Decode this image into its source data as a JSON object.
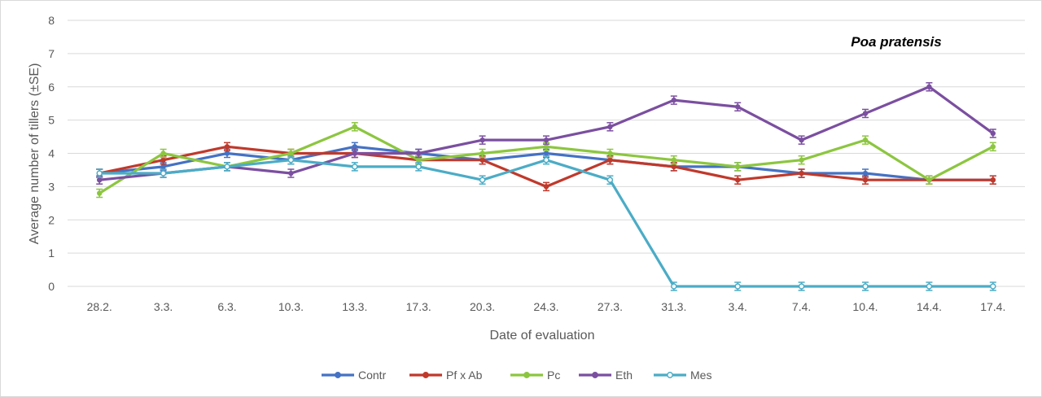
{
  "chart_data": {
    "type": "line",
    "title": "Poa pratensis",
    "xlabel": "Date of evaluation",
    "ylabel": "Average number of tillers (±SE)",
    "ylim": [
      0,
      8
    ],
    "yticks": [
      0,
      1,
      2,
      3,
      4,
      5,
      6,
      7,
      8
    ],
    "grid": "horizontal",
    "legend_position": "bottom",
    "categories": [
      "28.2.",
      "3.3.",
      "6.3.",
      "10.3.",
      "13.3.",
      "17.3.",
      "20.3.",
      "24.3.",
      "27.3.",
      "31.3.",
      "3.4.",
      "7.4.",
      "10.4.",
      "14.4.",
      "17.4."
    ],
    "series": [
      {
        "name": "Contr",
        "color": "#4472c4",
        "marker": "circle",
        "values": [
          3.4,
          3.6,
          4.0,
          3.8,
          4.2,
          4.0,
          3.8,
          4.0,
          3.8,
          3.6,
          3.6,
          3.4,
          3.4,
          3.2,
          3.2
        ]
      },
      {
        "name": "Pf x Ab",
        "color": "#c0392b",
        "marker": "circle",
        "values": [
          3.4,
          3.8,
          4.2,
          4.0,
          4.0,
          3.8,
          3.8,
          3.0,
          3.8,
          3.6,
          3.2,
          3.4,
          3.2,
          3.2,
          3.2
        ]
      },
      {
        "name": "Pc",
        "color": "#8cc63f",
        "marker": "circle",
        "values": [
          2.8,
          4.0,
          3.6,
          4.0,
          4.8,
          3.8,
          4.0,
          4.2,
          4.0,
          3.8,
          3.6,
          3.8,
          4.4,
          3.2,
          4.2
        ]
      },
      {
        "name": "Eth",
        "color": "#7b4fa0",
        "marker": "circle",
        "values": [
          3.2,
          3.4,
          3.6,
          3.4,
          4.0,
          4.0,
          4.4,
          4.4,
          4.8,
          5.6,
          5.4,
          4.4,
          5.2,
          6.0,
          4.6
        ]
      },
      {
        "name": "Mes",
        "color": "#4bacc6",
        "marker": "x",
        "values": [
          3.4,
          3.4,
          3.6,
          3.8,
          3.6,
          3.6,
          3.2,
          3.8,
          3.2,
          0,
          0,
          0,
          0,
          0,
          0
        ]
      }
    ]
  }
}
